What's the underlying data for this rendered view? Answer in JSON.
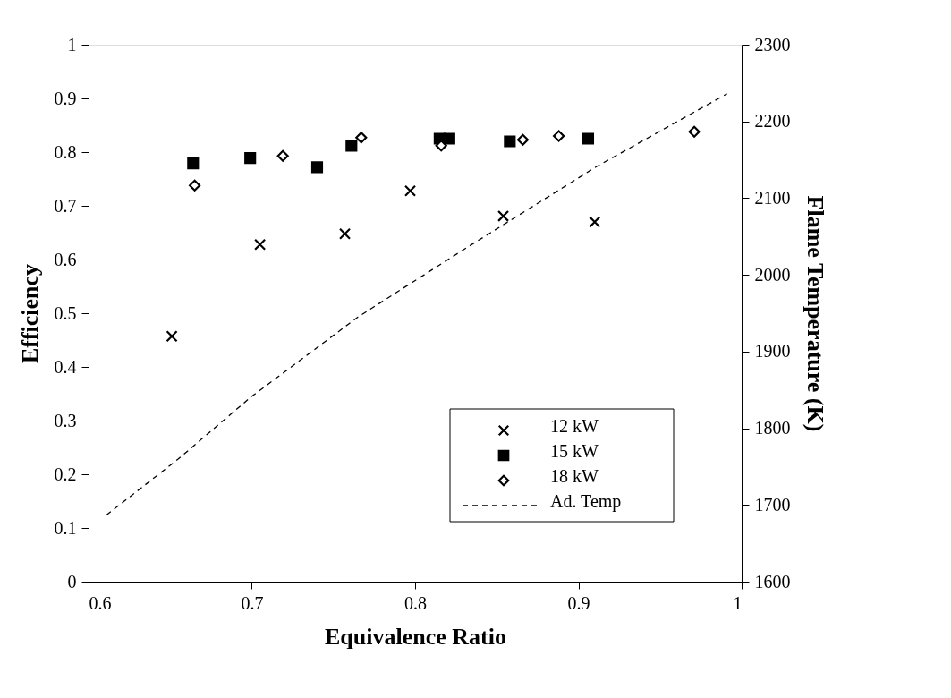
{
  "chart_data": {
    "type": "scatter",
    "xlabel": "Equivalence Ratio",
    "ylabel": "Efficiency",
    "y2label": "Flame Temperature (K)",
    "xlim": [
      0.6,
      1
    ],
    "xticks": [
      0.6,
      0.7,
      0.8,
      0.9,
      1
    ],
    "ylim": [
      0,
      1
    ],
    "yticks": [
      0,
      0.1,
      0.2,
      0.3,
      0.4,
      0.5,
      0.6,
      0.7,
      0.8,
      0.9,
      1
    ],
    "y2lim": [
      1600,
      2300
    ],
    "y2ticks": [
      1600,
      1700,
      1800,
      1900,
      2000,
      2100,
      2200,
      2300
    ],
    "grid": false,
    "legend": "bottom right",
    "series": [
      {
        "name": "12 kW",
        "marker": "cross",
        "color": "#000000",
        "x": [
          0.651,
          0.705,
          0.757,
          0.797,
          0.854,
          0.91
        ],
        "values": [
          0.457,
          0.628,
          0.648,
          0.728,
          0.681,
          0.67
        ]
      },
      {
        "name": "15 kW",
        "marker": "square",
        "color": "#000000",
        "x": [
          0.664,
          0.699,
          0.74,
          0.761,
          0.815,
          0.821,
          0.858,
          0.906
        ],
        "values": [
          0.779,
          0.789,
          0.772,
          0.812,
          0.825,
          0.825,
          0.82,
          0.825
        ]
      },
      {
        "name": "18 kW",
        "marker": "diamond",
        "color": "#000000",
        "x": [
          0.665,
          0.719,
          0.767,
          0.816,
          0.866,
          0.888,
          0.971
        ],
        "values": [
          0.738,
          0.793,
          0.827,
          0.812,
          0.823,
          0.83,
          0.838
        ]
      },
      {
        "name": "Ad. Temp",
        "type": "line",
        "axis": "y2",
        "line_style": "dashed",
        "marker": "none",
        "color": "#000000",
        "x": [
          0.611,
          0.655,
          0.699,
          0.765,
          0.832,
          0.911,
          0.991
        ],
        "values": [
          1687,
          1760,
          1840,
          1945,
          2036,
          2141,
          2236
        ]
      }
    ]
  }
}
